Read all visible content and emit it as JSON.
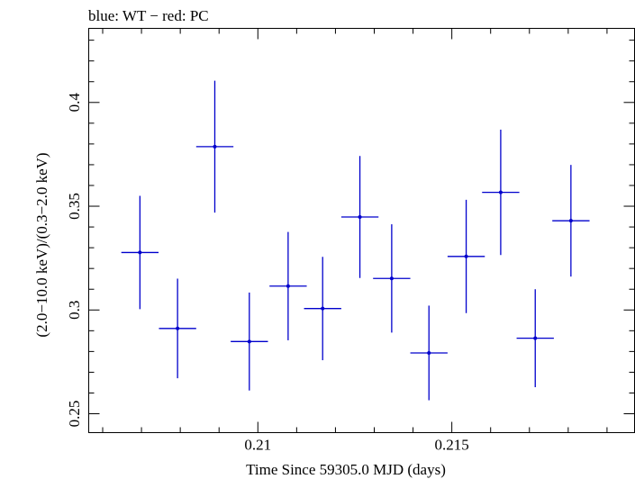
{
  "chart_data": {
    "type": "scatter",
    "title": "blue: WT − red: PC",
    "xlabel": "Time Since 59305.0 MJD (days)",
    "ylabel": "(2.0−10.0 keV)/(0.3−2.0 keV)",
    "xlim": [
      0.20564,
      0.21971
    ],
    "ylim": [
      0.2409,
      0.4357
    ],
    "x_ticks": [
      0.21,
      0.215
    ],
    "x_tick_labels": [
      "0.21",
      "0.215"
    ],
    "y_ticks": [
      0.25,
      0.3,
      0.35,
      0.4
    ],
    "y_tick_labels": [
      "0.25",
      "0.3",
      "0.35",
      "0.4"
    ],
    "grid": false,
    "series": [
      {
        "color": "#0000cc",
        "points": [
          {
            "x": 0.20696,
            "xerr": 0.00048,
            "y": 0.3277,
            "yerr_low": 0.0273,
            "yerr_high": 0.0273
          },
          {
            "x": 0.20793,
            "xerr": 0.00048,
            "y": 0.2911,
            "yerr_low": 0.024,
            "yerr_high": 0.024
          },
          {
            "x": 0.20889,
            "xerr": 0.00048,
            "y": 0.3787,
            "yerr_low": 0.0318,
            "yerr_high": 0.0318
          },
          {
            "x": 0.20978,
            "xerr": 0.00048,
            "y": 0.2848,
            "yerr_low": 0.0236,
            "yerr_high": 0.0236
          },
          {
            "x": 0.21078,
            "xerr": 0.00048,
            "y": 0.3115,
            "yerr_low": 0.0261,
            "yerr_high": 0.0261
          },
          {
            "x": 0.21167,
            "xerr": 0.00048,
            "y": 0.3007,
            "yerr_low": 0.0249,
            "yerr_high": 0.0249
          },
          {
            "x": 0.21263,
            "xerr": 0.00048,
            "y": 0.3448,
            "yerr_low": 0.0294,
            "yerr_high": 0.0294
          },
          {
            "x": 0.21345,
            "xerr": 0.00048,
            "y": 0.3152,
            "yerr_low": 0.0261,
            "yerr_high": 0.0261
          },
          {
            "x": 0.21441,
            "xerr": 0.00048,
            "y": 0.2793,
            "yerr_low": 0.0228,
            "yerr_high": 0.0228
          },
          {
            "x": 0.21537,
            "xerr": 0.00048,
            "y": 0.3258,
            "yerr_low": 0.0273,
            "yerr_high": 0.0273
          },
          {
            "x": 0.21626,
            "xerr": 0.00048,
            "y": 0.3567,
            "yerr_low": 0.0302,
            "yerr_high": 0.0302
          },
          {
            "x": 0.21715,
            "xerr": 0.00048,
            "y": 0.2864,
            "yerr_low": 0.0236,
            "yerr_high": 0.0236
          },
          {
            "x": 0.21807,
            "xerr": 0.00048,
            "y": 0.343,
            "yerr_low": 0.0269,
            "yerr_high": 0.0269
          }
        ]
      }
    ]
  }
}
